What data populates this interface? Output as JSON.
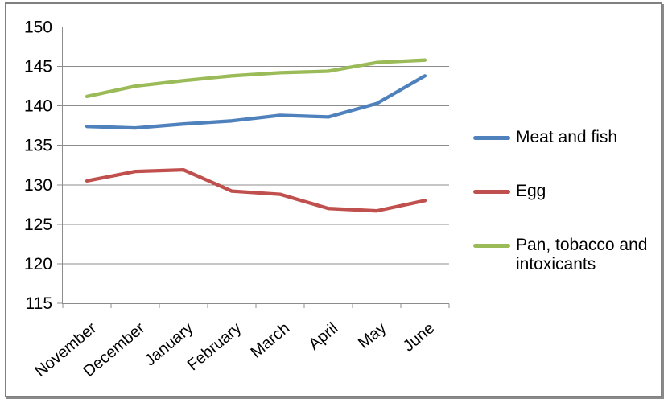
{
  "chart_data": {
    "type": "line",
    "title": "",
    "xlabel": "",
    "ylabel": "",
    "categories": [
      "November",
      "December",
      "January",
      "February",
      "March",
      "April",
      "May",
      "June"
    ],
    "series": [
      {
        "name": "Meat and fish",
        "color": "#4F81BD",
        "values": [
          137.4,
          137.2,
          137.7,
          138.1,
          138.8,
          138.6,
          140.3,
          143.8
        ]
      },
      {
        "name": "Egg",
        "color": "#C0504D",
        "values": [
          130.5,
          131.7,
          131.9,
          129.2,
          128.8,
          127.0,
          126.7,
          128.0
        ]
      },
      {
        "name": "Pan, tobacco and intoxicants",
        "color": "#9BBB59",
        "legend_lines": [
          "Pan, tobacco and",
          "intoxicants"
        ],
        "values": [
          141.2,
          142.5,
          143.2,
          143.8,
          144.2,
          144.4,
          145.5,
          145.8
        ]
      }
    ],
    "ylim": [
      115,
      150
    ],
    "yticks": [
      115,
      120,
      125,
      130,
      135,
      140,
      145,
      150
    ],
    "ytick_step": 5,
    "grid": true,
    "legend_position": "right"
  },
  "colors": {
    "background": "#FFFFFF",
    "frame_border": "#808080",
    "gridline": "#8C8C8C",
    "axis": "#8C8C8C",
    "text": "#000000"
  }
}
